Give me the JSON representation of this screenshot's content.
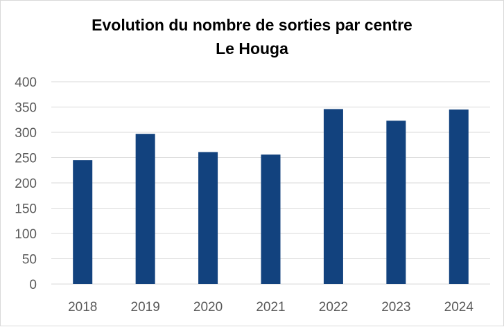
{
  "chart_data": {
    "type": "bar",
    "title": "Evolution du nombre de sorties par centre",
    "subtitle": "Le Houga",
    "xlabel": "",
    "ylabel": "",
    "categories": [
      "2018",
      "2019",
      "2020",
      "2021",
      "2022",
      "2023",
      "2024"
    ],
    "values": [
      245,
      297,
      261,
      256,
      346,
      323,
      345
    ],
    "ylim": [
      0,
      400
    ],
    "yticks": [
      "0",
      "50",
      "100",
      "150",
      "200",
      "250",
      "300",
      "350",
      "400"
    ],
    "grid": true,
    "legend": "none",
    "colors": {
      "bar": "#12427e",
      "grid": "#d9d9d9",
      "tick_text": "#595959"
    }
  }
}
